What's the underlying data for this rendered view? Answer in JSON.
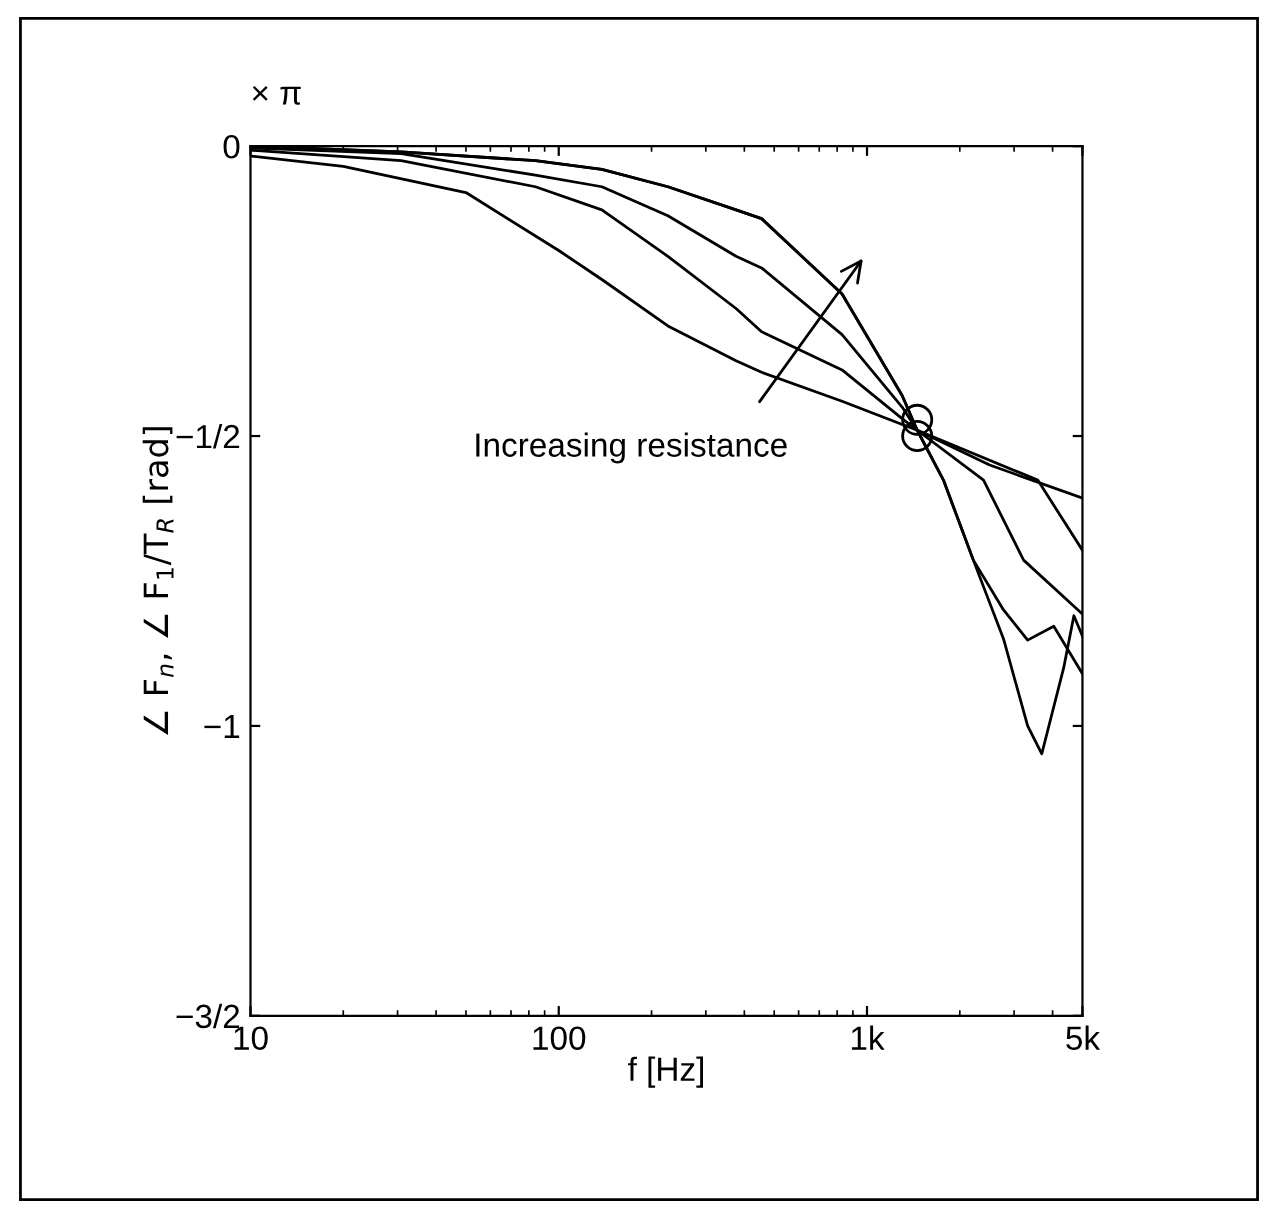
{
  "chart_data": {
    "type": "line",
    "xlabel": "f [Hz]",
    "ylabel": "∠ F$_{n}$, ∠ F$_{1}$/T$_{R}$ [rad]",
    "log": "x",
    "xlim": [
      10,
      5000
    ],
    "xticks": [
      10,
      100,
      {
        "value": 1000,
        "label": "1k"
      },
      {
        "value": 5000,
        "label": "5k"
      }
    ],
    "ylim": [
      -1.5,
      0
    ],
    "yticks": [
      {
        "value": 0,
        "label": "0"
      },
      {
        "value": -0.5,
        "label": "−1/2"
      },
      {
        "value": -1,
        "label": "−1"
      },
      {
        "value": -1.5,
        "label": "−3/2"
      }
    ],
    "grid": false,
    "legend": false,
    "marker": "none",
    "line_style": "solid",
    "annotations": [
      "× π",
      "Increasing resistance"
    ],
    "series": [
      {
        "color": "#000000",
        "x": [
          10,
          20,
          50,
          100,
          138,
          226,
          376,
          455,
          830,
          1455,
          2500,
          5000
        ],
        "values": [
          -0.017,
          -0.035,
          -0.08,
          -0.18,
          -0.23,
          -0.31,
          -0.37,
          -0.39,
          -0.44,
          -0.49,
          -0.55,
          -0.607
        ]
      },
      {
        "color": "#000000",
        "x": [
          10,
          30.8,
          84,
          138,
          226,
          376,
          455,
          830,
          1300,
          1455,
          3580,
          5000
        ],
        "values": [
          -0.007,
          -0.025,
          -0.07,
          -0.11,
          -0.19,
          -0.28,
          -0.32,
          -0.386,
          -0.47,
          -0.49,
          -0.576,
          -0.697
        ]
      },
      {
        "color": "#000000",
        "x": [
          10,
          30.8,
          84,
          138,
          226,
          376,
          455,
          830,
          1300,
          1455,
          2388,
          3221,
          5000
        ],
        "values": [
          -0.003,
          -0.013,
          -0.05,
          -0.07,
          -0.12,
          -0.19,
          -0.21,
          -0.325,
          -0.45,
          -0.49,
          -0.576,
          -0.714,
          -0.807
        ]
      },
      {
        "color": "#000000",
        "x": [
          10,
          30.8,
          84,
          138,
          226,
          376,
          455,
          830,
          1300,
          1455,
          1770,
          2213,
          2773,
          3320,
          4035,
          5000
        ],
        "values": [
          0,
          -0.01,
          -0.025,
          -0.04,
          -0.07,
          -0.11,
          -0.125,
          -0.255,
          -0.43,
          -0.49,
          -0.576,
          -0.714,
          -0.8,
          -0.852,
          -0.828,
          -0.91
        ]
      },
      {
        "color": "#000000",
        "x": [
          10,
          30.8,
          84,
          138,
          226,
          376,
          455,
          830,
          1300,
          1455,
          1770,
          2213,
          2773,
          3320,
          3690,
          4345,
          4690,
          5000
        ],
        "values": [
          0,
          -0.01,
          -0.025,
          -0.04,
          -0.07,
          -0.11,
          -0.125,
          -0.255,
          -0.43,
          -0.49,
          -0.576,
          -0.714,
          -0.85,
          -1.0,
          -1.048,
          -0.9,
          -0.81,
          -0.845
        ]
      },
      {
        "type": "scatter",
        "marker": "circle",
        "color": "#000000",
        "x": [
          1455,
          1455
        ],
        "values": [
          -0.472,
          -0.5
        ]
      }
    ]
  }
}
